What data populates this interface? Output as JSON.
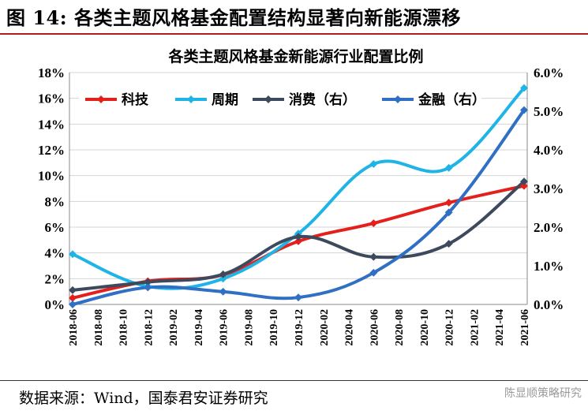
{
  "figure_title": "图 14: 各类主题风格基金配置结构显著向新能源漂移",
  "source_note": "数据来源：Wind，国泰君安证券研究",
  "watermark": "陈显顺策略研究",
  "chart_data": {
    "type": "line",
    "title": "各类主题风格基金新能源行业配置比例",
    "categories": [
      "2018-06",
      "2018-08",
      "2018-10",
      "2018-12",
      "2019-02",
      "2019-04",
      "2019-06",
      "2019-08",
      "2019-10",
      "2019-12",
      "2020-02",
      "2020-04",
      "2020-06",
      "2020-08",
      "2020-10",
      "2020-12",
      "2021-02",
      "2021-04",
      "2021-06"
    ],
    "left_axis": {
      "range": [
        0,
        18
      ],
      "ticks": [
        "0%",
        "2%",
        "4%",
        "6%",
        "8%",
        "10%",
        "12%",
        "14%",
        "16%",
        "18%"
      ]
    },
    "right_axis": {
      "range": [
        0,
        6
      ],
      "ticks": [
        "0.0%",
        "1.0%",
        "2.0%",
        "3.0%",
        "4.0%",
        "5.0%",
        "6.0%"
      ]
    },
    "legend_position": "top-left",
    "series": [
      {
        "name": "科技",
        "axis": "left",
        "color": "#e3201b",
        "x": [
          "2018-06",
          "2018-12",
          "2019-06",
          "2019-12",
          "2020-06",
          "2020-12",
          "2021-06"
        ],
        "values": [
          0.5,
          1.8,
          2.3,
          4.9,
          6.3,
          7.9,
          9.2
        ]
      },
      {
        "name": "周期",
        "axis": "left",
        "color": "#1fb4e6",
        "x": [
          "2018-06",
          "2018-12",
          "2019-06",
          "2019-12",
          "2020-06",
          "2020-12",
          "2021-06"
        ],
        "values": [
          3.9,
          1.4,
          2.0,
          5.5,
          10.9,
          10.6,
          16.8
        ]
      },
      {
        "name": "消费（右）",
        "axis": "right",
        "color": "#3d4a5e",
        "x": [
          "2018-06",
          "2018-12",
          "2019-06",
          "2019-12",
          "2020-06",
          "2020-12",
          "2021-06"
        ],
        "values": [
          0.37,
          0.58,
          0.78,
          1.75,
          1.23,
          1.57,
          3.18
        ]
      },
      {
        "name": "金融（右）",
        "axis": "right",
        "color": "#2f6fc4",
        "x": [
          "2018-06",
          "2018-12",
          "2019-06",
          "2019-12",
          "2020-06",
          "2020-12",
          "2021-06"
        ],
        "values": [
          0.0,
          0.44,
          0.33,
          0.18,
          0.82,
          2.38,
          5.03
        ]
      }
    ]
  }
}
